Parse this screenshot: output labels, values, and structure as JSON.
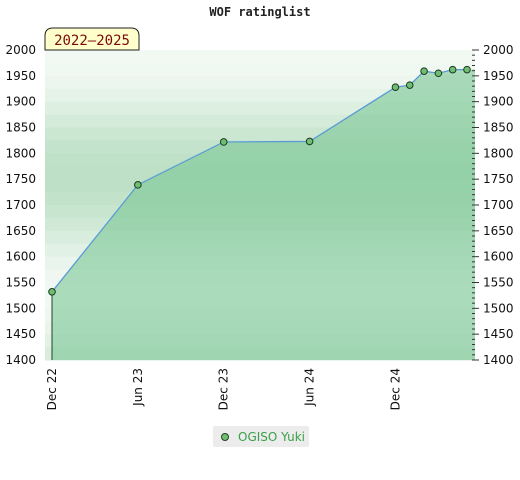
{
  "chart_data": {
    "type": "line",
    "title": "WOF ratinglist",
    "period_badge": "2022–2025",
    "ylim": [
      1400,
      2000
    ],
    "yticks": [
      1400,
      1450,
      1500,
      1550,
      1600,
      1650,
      1700,
      1750,
      1800,
      1850,
      1900,
      1950,
      2000
    ],
    "x_range": [
      "2022-12",
      "2025-05"
    ],
    "x_ticks": [
      {
        "date": "2022-12",
        "label": "Dec 22"
      },
      {
        "date": "2023-06",
        "label": "Jun 23"
      },
      {
        "date": "2023-12",
        "label": "Dec 23"
      },
      {
        "date": "2024-06",
        "label": "Jun 24"
      },
      {
        "date": "2024-12",
        "label": "Dec 24"
      }
    ],
    "series": [
      {
        "name": "OGISO Yuki",
        "color": "#5b9bd5",
        "marker_color": "#6fbf73",
        "points": [
          {
            "x": "2022-12",
            "y": 1532
          },
          {
            "x": "2023-06",
            "y": 1739
          },
          {
            "x": "2023-12",
            "y": 1822
          },
          {
            "x": "2024-06",
            "y": 1823
          },
          {
            "x": "2024-12",
            "y": 1928
          },
          {
            "x": "2025-01",
            "y": 1932
          },
          {
            "x": "2025-02",
            "y": 1959
          },
          {
            "x": "2025-03",
            "y": 1955
          },
          {
            "x": "2025-04",
            "y": 1962
          },
          {
            "x": "2025-05",
            "y": 1962
          }
        ]
      }
    ],
    "legend_position": "bottom-center",
    "grid": false,
    "colors": {
      "fill": "#7ac795",
      "band_dark": "#bde0c6",
      "band_light": "#f2f9f3",
      "badge_bg": "#ffffcc"
    }
  },
  "legend": {
    "label": "OGISO Yuki"
  }
}
